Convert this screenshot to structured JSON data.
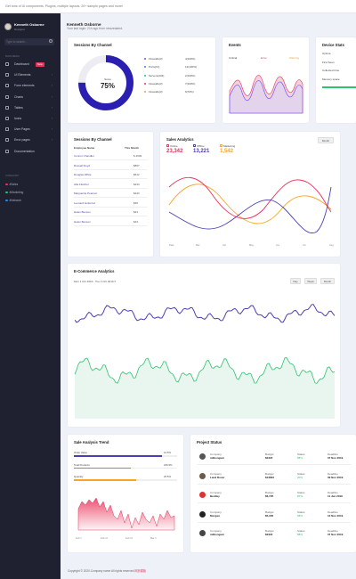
{
  "topbar": {
    "message": "Get tons of UI components, Plugins, multiple layouts, 20+ sample pages and more!"
  },
  "user": {
    "name": "Kenneth Osborne",
    "role": "Designer"
  },
  "sidebar": {
    "search_placeholder": "Type to search...",
    "section_main": "Main Menu",
    "items": [
      {
        "label": "Dashboard",
        "badge": "New"
      },
      {
        "label": "UI Elements",
        "chevron": "›"
      },
      {
        "label": "Form elements",
        "chevron": "›"
      },
      {
        "label": "Charts",
        "chevron": "›"
      },
      {
        "label": "Tables",
        "chevron": "›"
      },
      {
        "label": "Icons",
        "chevron": "›"
      },
      {
        "label": "User Pages",
        "chevron": "›"
      },
      {
        "label": "Error pages",
        "chevron": "›"
      },
      {
        "label": "Documentation"
      }
    ],
    "section_category": "Category",
    "categories": [
      {
        "label": "#Sales",
        "color": "#e8345b"
      },
      {
        "label": "#Marketing",
        "color": "#2ec26e"
      },
      {
        "label": "#Network",
        "color": "#2f88e0"
      }
    ]
  },
  "header": {
    "title": "Kenneth Osborne",
    "subtitle": "Your last login: 21h ago from newzealand."
  },
  "sessions_channel": {
    "title": "Sessions By Channel",
    "score_label": "Score",
    "score_value": "75%",
    "score_fraction": 0.75,
    "legend": [
      {
        "label": "Firewalls(3)",
        "value": "4(100%)",
        "color": "#6c47ff"
      },
      {
        "label": "Ports(12)",
        "value": "12(100%)",
        "color": "#2f88e0"
      },
      {
        "label": "Servers(233)",
        "value": "2(100%)",
        "color": "#2ec26e"
      },
      {
        "label": "Firewalls(3)",
        "value": "7(100%)",
        "color": "#e8345b"
      },
      {
        "label": "Firewalls(3)",
        "value": "6(70%)",
        "color": "#f5a623"
      }
    ]
  },
  "events": {
    "title": "Events",
    "labels": [
      "Critical",
      "Error",
      "Warning"
    ],
    "label_colors": [
      "#555555",
      "#e8345b",
      "#f5a623"
    ]
  },
  "device_stats": {
    "title": "Device Stats",
    "rows": [
      {
        "label": "Uptime"
      },
      {
        "label": "First Seen"
      },
      {
        "label": "Collected time"
      },
      {
        "label": "Memory space"
      }
    ],
    "memory_color": "#2ec26e"
  },
  "sessions_table": {
    "title": "Sessions By Channel",
    "headers": [
      "Employee Name",
      "This Month"
    ],
    "rows": [
      {
        "name": "Connor Chandler",
        "value": "$ 4909"
      },
      {
        "name": "Russell Floyd",
        "value": "$857"
      },
      {
        "name": "Douglas White",
        "value": "$612"
      },
      {
        "name": "Alta Fletcher",
        "value": "$233"
      },
      {
        "name": "Marguerite Pearson",
        "value": "$233"
      },
      {
        "name": "Leonard Gutierrez",
        "value": "$35"
      },
      {
        "name": "Helen Benson",
        "value": "$43"
      },
      {
        "name": "Helen Benson",
        "value": "$43"
      }
    ]
  },
  "sales_analytics": {
    "title": "Sales Analytics",
    "button": "Month",
    "metrics": [
      {
        "label": "Online",
        "value": "23,342",
        "color": "#e8345b",
        "icon": "cart-icon"
      },
      {
        "label": "Offline",
        "value": "13,221",
        "color": "#4b3fb5",
        "icon": "store-icon"
      },
      {
        "label": "Marketing",
        "value": "1,542",
        "color": "#f5a623",
        "icon": "megaphone-icon"
      }
    ],
    "x_ticks": [
      "Date",
      "Mar",
      "Apr",
      "May",
      "Jun",
      "Jul",
      "Aug"
    ]
  },
  "ecommerce": {
    "title": "E-Commerce Analytics",
    "date_range": "Mon 1 Oct 2019 - Tue 2 Oct 2019 ▾",
    "buttons": [
      "Day",
      "Week",
      "Month"
    ],
    "line1_color": "#4b3fb5",
    "line2_color": "#2ec26e"
  },
  "sales_trend": {
    "title": "Sale Analysis Trend",
    "bars": [
      {
        "label": "Order Value",
        "value": "12.5%",
        "fraction": 0.85,
        "color": "#4b3fb5"
      },
      {
        "label": "Total Products",
        "value": "236.5%",
        "fraction": 0.55,
        "color": "#2ec26e"
      },
      {
        "label": "Quantity",
        "value": "23.5%",
        "fraction": 0.6,
        "color": "#f5a623"
      }
    ],
    "x_ticks": [
      "Feb 1",
      "Feb 11",
      "Feb 21",
      "Mar 1"
    ]
  },
  "project_status": {
    "title": "Project Status",
    "rows": [
      {
        "company": "milkongum",
        "budget": "$2322",
        "status": "88%",
        "deadline": "07 Nov 2019",
        "avatar": "#555555"
      },
      {
        "company": "Land Rover",
        "budget": "$13822",
        "status": "20%",
        "deadline": "09 Nov 2019",
        "avatar": "#6b5a48"
      },
      {
        "company": "Bentley",
        "budget": "$6,725",
        "status": "87%",
        "deadline": "11 Jun 2019",
        "avatar": "#d33"
      },
      {
        "company": "Morgan",
        "budget": "$5,335",
        "status": "68%",
        "deadline": "10 Nov 2019",
        "avatar": "#222222"
      },
      {
        "company": "milkongum",
        "budget": "$2322",
        "status": "88%",
        "deadline": "07 Nov 2019",
        "avatar": "#444444"
      }
    ],
    "field_labels": {
      "company": "Company",
      "budget": "Budget",
      "status": "Status",
      "deadline": "Deadline"
    }
  },
  "footer": {
    "text": "Copyright © 2020.Company name All rights reserved.",
    "link": "网页模板"
  }
}
